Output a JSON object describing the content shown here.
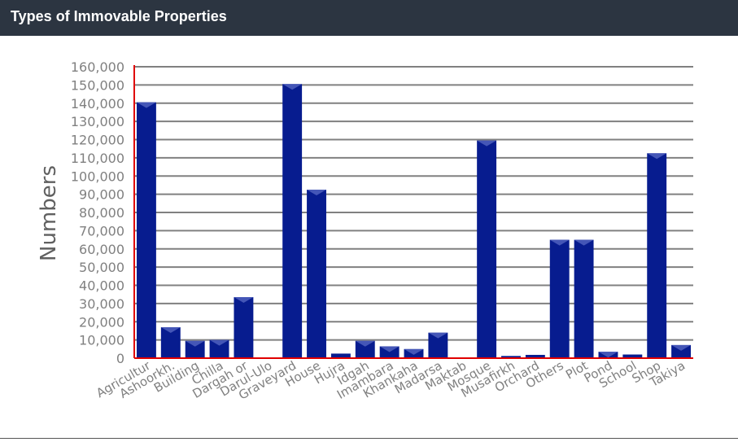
{
  "header": {
    "title": "Types of Immovable Properties"
  },
  "colors": {
    "bar": "#071c8f",
    "grid": "#808080",
    "axis": "#e00000",
    "header_bg": "#2c3541",
    "label": "#808080"
  },
  "chart_data": {
    "type": "bar",
    "title": "",
    "xlabel": "",
    "ylabel": "Numbers",
    "ylim": [
      0,
      160000
    ],
    "y_ticks": [
      0,
      10000,
      20000,
      30000,
      40000,
      50000,
      60000,
      70000,
      80000,
      90000,
      100000,
      110000,
      120000,
      130000,
      140000,
      150000,
      160000
    ],
    "y_tick_labels": [
      "0",
      "10,000",
      "20,000",
      "30,000",
      "40,000",
      "50,000",
      "60,000",
      "70,000",
      "80,000",
      "90,000",
      "100,000",
      "110,000",
      "120,000",
      "130,000",
      "140,000",
      "150,000",
      "160,000"
    ],
    "grid": true,
    "categories": [
      "Agricultur",
      "Ashoorkh.",
      "Building",
      "Chilla",
      "Dargah or",
      "Darul-Ulo",
      "Graveyard",
      "House",
      "Hujra",
      "Idgah",
      "Imambara",
      "Khankaha",
      "Madarsa",
      "Maktab",
      "Mosque",
      "Musafirkh",
      "Orchard",
      "Others",
      "Plot",
      "Pond",
      "School",
      "Shop",
      "Takiya"
    ],
    "values": [
      140500,
      17000,
      9500,
      10000,
      33500,
      400,
      150500,
      92500,
      2500,
      9500,
      6500,
      5000,
      14000,
      400,
      119500,
      1200,
      1800,
      65000,
      65000,
      3500,
      2000,
      112500,
      7200
    ]
  }
}
